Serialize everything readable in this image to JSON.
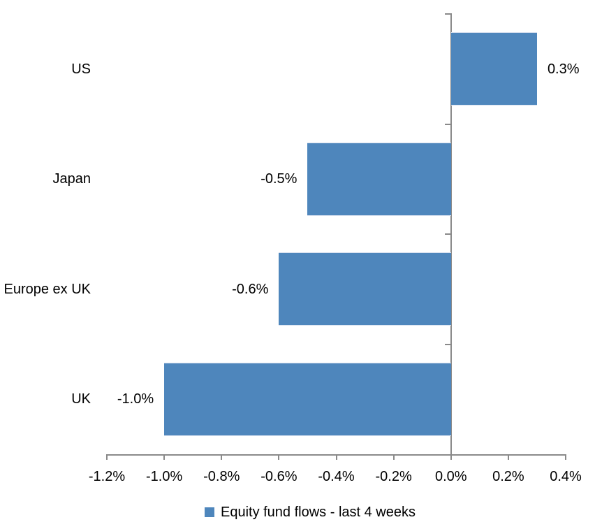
{
  "chart_data": {
    "type": "bar",
    "orientation": "horizontal",
    "title": "",
    "categories": [
      "US",
      "Japan",
      "Europe ex UK",
      "UK"
    ],
    "series": [
      {
        "name": "Equity fund flows - last 4 weeks",
        "values": [
          0.3,
          -0.5,
          -0.6,
          -1.0
        ],
        "data_labels": [
          "0.3%",
          "-0.5%",
          "-0.6%",
          "-1.0%"
        ],
        "color": "#4E86BC"
      }
    ],
    "x_axis": {
      "min": -1.2,
      "max": 0.4,
      "step": 0.2,
      "tick_values": [
        -1.2,
        -1.0,
        -0.8,
        -0.6,
        -0.4,
        -0.2,
        0.0,
        0.2,
        0.4
      ],
      "tick_labels": [
        "-1.2%",
        "-1.0%",
        "-0.8%",
        "-0.6%",
        "-0.4%",
        "-0.2%",
        "0.0%",
        "0.2%",
        "0.4%"
      ]
    },
    "grid": false,
    "legend_position": "bottom",
    "colors": {
      "bar": "#4E86BC",
      "axis": "#8A8A8A",
      "text": "#000000",
      "background": "#FFFFFF"
    }
  }
}
